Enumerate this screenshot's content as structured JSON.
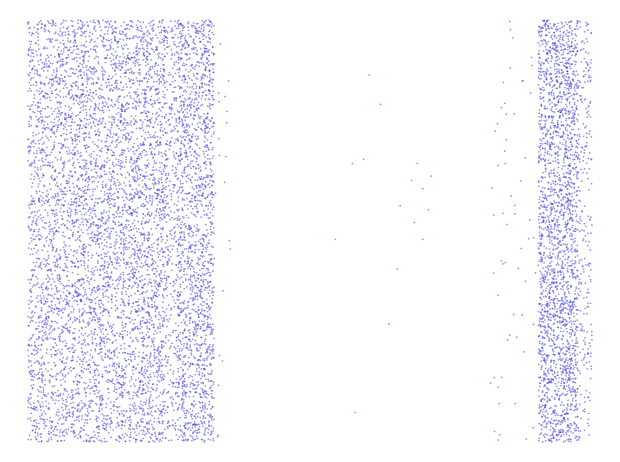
{
  "chart_data": {
    "type": "scatter",
    "title": "",
    "xlabel": "",
    "ylabel": "",
    "grid": false,
    "legend": "none",
    "axes_visible": false,
    "xlim": [
      0,
      1
    ],
    "ylim": [
      0,
      1
    ],
    "series": [
      {
        "color": "#3b3bdc",
        "opacity": 0.55,
        "marker": "dot",
        "bands": [
          {
            "x_range": [
              0.0,
              0.055
            ],
            "density": "high",
            "approx_points": 1100
          },
          {
            "x_range": [
              0.055,
              0.2
            ],
            "density": "very-high",
            "approx_points": 3200
          },
          {
            "x_range": [
              0.2,
              0.245
            ],
            "density": "high",
            "approx_points": 1100
          },
          {
            "x_range": [
              0.245,
              0.265
            ],
            "density": "medium",
            "approx_points": 300
          },
          {
            "x_range": [
              0.265,
              0.33
            ],
            "density": "very-high",
            "approx_points": 1700
          },
          {
            "x_range": [
              0.33,
              0.36
            ],
            "density": "sparse",
            "approx_points": 20
          },
          {
            "x_range": [
              0.82,
              0.905
            ],
            "density": "sparse",
            "approx_points": 60
          },
          {
            "x_range": [
              0.905,
              0.975
            ],
            "density": "very-high",
            "approx_points": 2300
          },
          {
            "x_range": [
              0.975,
              1.0
            ],
            "density": "medium",
            "approx_points": 250
          }
        ]
      },
      {
        "color": "#e04a5c",
        "opacity": 0.7,
        "marker": "dot",
        "points": [
          [
            0.605,
            0.87
          ],
          [
            0.625,
            0.8
          ],
          [
            0.595,
            0.67
          ],
          [
            0.68,
            0.62
          ],
          [
            0.715,
            0.63
          ],
          [
            0.7,
            0.6
          ],
          [
            0.66,
            0.56
          ],
          [
            0.71,
            0.55
          ],
          [
            0.685,
            0.52
          ],
          [
            0.545,
            0.48
          ],
          [
            0.7,
            0.48
          ],
          [
            0.655,
            0.41
          ],
          [
            0.64,
            0.28
          ],
          [
            0.58,
            0.07
          ],
          [
            0.69,
            0.66
          ],
          [
            0.575,
            0.66
          ]
        ]
      }
    ]
  }
}
